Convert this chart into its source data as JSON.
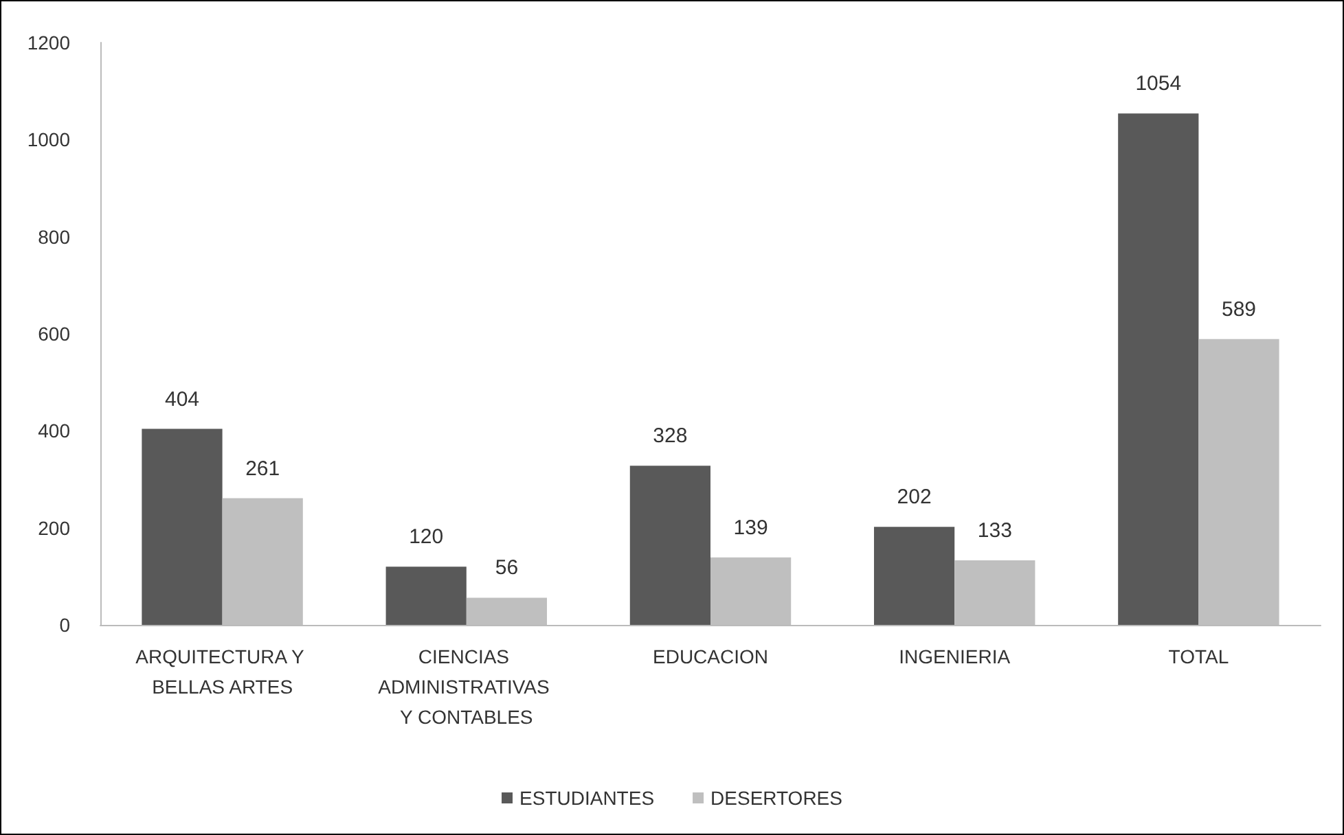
{
  "chart_data": {
    "type": "bar",
    "categories": [
      "ARQUITECTURA Y BELLAS ARTES",
      "CIENCIAS ADMINISTRATIVAS Y CONTABLES",
      "EDUCACION",
      "INGENIERIA",
      "TOTAL"
    ],
    "series": [
      {
        "name": "ESTUDIANTES",
        "color": "#595959",
        "values": [
          404,
          120,
          328,
          202,
          1054
        ]
      },
      {
        "name": "DESERTORES",
        "color": "#bfbfbf",
        "values": [
          261,
          56,
          139,
          133,
          589
        ]
      }
    ],
    "ylim": [
      0,
      1200
    ],
    "yticks": [
      0,
      200,
      400,
      600,
      800,
      1000,
      1200
    ],
    "grid": false,
    "legend": "bottom",
    "data_labels": true
  }
}
